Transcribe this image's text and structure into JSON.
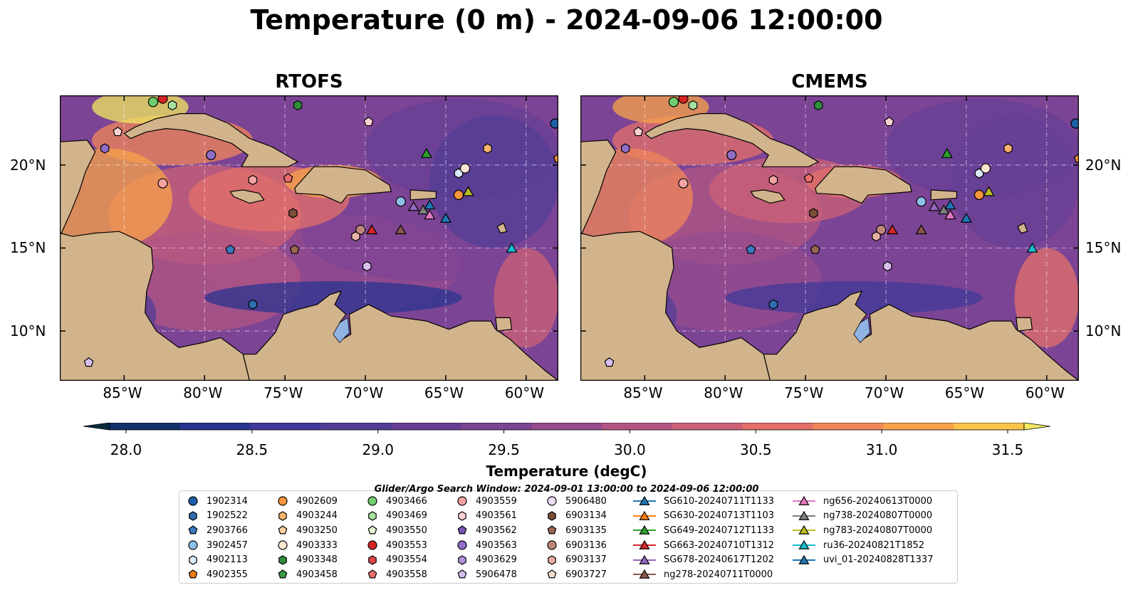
{
  "title": "Temperature (0 m) - 2024-09-06 12:00:00",
  "panels": [
    {
      "id": "left",
      "title": "RTOFS"
    },
    {
      "id": "right",
      "title": "CMEMS"
    }
  ],
  "map_extent": {
    "lon_min": -89,
    "lon_max": -58,
    "lat_min": 7,
    "lat_max": 24.2
  },
  "lon_ticks": [
    {
      "lon": -85,
      "label": "85°W"
    },
    {
      "lon": -80,
      "label": "80°W"
    },
    {
      "lon": -75,
      "label": "75°W"
    },
    {
      "lon": -70,
      "label": "70°W"
    },
    {
      "lon": -65,
      "label": "65°W"
    },
    {
      "lon": -60,
      "label": "60°W"
    }
  ],
  "lat_ticks": [
    {
      "lat": 20,
      "label": "20°N"
    },
    {
      "lat": 15,
      "label": "15°N"
    },
    {
      "lat": 10,
      "label": "10°N"
    }
  ],
  "colorbar": {
    "label": "Temperature (degC)",
    "min": 28.0,
    "max": 31.5,
    "extend": "both",
    "tick_labels": [
      "28.0",
      "28.5",
      "29.0",
      "29.5",
      "30.0",
      "30.5",
      "31.0",
      "31.5"
    ],
    "colors": [
      "#0b2a3f",
      "#14306b",
      "#2a3490",
      "#403a98",
      "#533d97",
      "#663f95",
      "#7c4494",
      "#964c8d",
      "#b25584",
      "#cc6176",
      "#e4706a",
      "#f08758",
      "#f8a34a",
      "#f9c44a",
      "#f2e860"
    ]
  },
  "legend": {
    "title": "Glider/Argo Search Window: 2024-09-01 13:00:00 to 2024-09-06 12:00:00",
    "columns": [
      [
        {
          "label": "1902314",
          "shape": "circle",
          "color": "#1f5fa5"
        },
        {
          "label": "1902522",
          "shape": "hexagon",
          "color": "#2e6db0"
        },
        {
          "label": "2903766",
          "shape": "pentagon",
          "color": "#3a7ac0"
        },
        {
          "label": "3902457",
          "shape": "circle",
          "color": "#8fc0e8"
        },
        {
          "label": "4902113",
          "shape": "hexagon",
          "color": "#dbeaf8"
        },
        {
          "label": "4902355",
          "shape": "pentagon",
          "color": "#ef7a12"
        }
      ],
      [
        {
          "label": "4902609",
          "shape": "circle",
          "color": "#f7963a"
        },
        {
          "label": "4903244",
          "shape": "hexagon",
          "color": "#f9b26e"
        },
        {
          "label": "4903250",
          "shape": "pentagon",
          "color": "#fbcf9e"
        },
        {
          "label": "4903333",
          "shape": "circle",
          "color": "#fde7d2"
        },
        {
          "label": "4903348",
          "shape": "hexagon",
          "color": "#2f8f3a"
        },
        {
          "label": "4903458",
          "shape": "pentagon",
          "color": "#3a9c45"
        }
      ],
      [
        {
          "label": "4903466",
          "shape": "circle",
          "color": "#6fcf6f"
        },
        {
          "label": "4903469",
          "shape": "hexagon",
          "color": "#a7e3a0"
        },
        {
          "label": "4903550",
          "shape": "pentagon",
          "color": "#e6f7d8"
        },
        {
          "label": "4903553",
          "shape": "circle",
          "color": "#d42424"
        },
        {
          "label": "4903554",
          "shape": "hexagon",
          "color": "#e14848"
        },
        {
          "label": "4903558",
          "shape": "pentagon",
          "color": "#ec6e6e"
        }
      ],
      [
        {
          "label": "4903559",
          "shape": "circle",
          "color": "#f4a3a3"
        },
        {
          "label": "4903561",
          "shape": "hexagon",
          "color": "#fbd2d2"
        },
        {
          "label": "4903562",
          "shape": "pentagon",
          "color": "#7a54b4"
        },
        {
          "label": "4903563",
          "shape": "circle",
          "color": "#8f6cc6"
        },
        {
          "label": "4903629",
          "shape": "hexagon",
          "color": "#b294dc"
        },
        {
          "label": "5906478",
          "shape": "pentagon",
          "color": "#d7bfee"
        }
      ],
      [
        {
          "label": "5906480",
          "shape": "circle",
          "color": "#eedcf8"
        },
        {
          "label": "6903134",
          "shape": "hexagon",
          "color": "#7d4e37"
        },
        {
          "label": "6903135",
          "shape": "pentagon",
          "color": "#9a6850"
        },
        {
          "label": "6903136",
          "shape": "circle",
          "color": "#c1867a"
        },
        {
          "label": "6903137",
          "shape": "hexagon",
          "color": "#e4b1a3"
        },
        {
          "label": "6903727",
          "shape": "pentagon",
          "color": "#f8dcd3"
        }
      ],
      [
        {
          "label": "SG610-20240711T1133",
          "shape": "triangle",
          "color": "#1f77b4"
        },
        {
          "label": "SG630-20240713T1103",
          "shape": "triangle",
          "color": "#ff7f0e"
        },
        {
          "label": "SG649-20240712T1133",
          "shape": "triangle",
          "color": "#2ca02c"
        },
        {
          "label": "SG663-20240710T1312",
          "shape": "triangle",
          "color": "#d62728"
        },
        {
          "label": "SG678-20240617T1202",
          "shape": "triangle",
          "color": "#9467bd"
        },
        {
          "label": "ng278-20240711T0000",
          "shape": "triangle",
          "color": "#8c564b"
        }
      ],
      [
        {
          "label": "ng656-20240613T0000",
          "shape": "triangle",
          "color": "#e377c2"
        },
        {
          "label": "ng738-20240807T0000",
          "shape": "triangle",
          "color": "#7f7f7f"
        },
        {
          "label": "ng783-20240807T0000",
          "shape": "triangle",
          "color": "#bcbd22"
        },
        {
          "label": "ru36-20240821T1852",
          "shape": "triangle",
          "color": "#17becf"
        },
        {
          "label": "uvi_01-20240828T1337",
          "shape": "triangle",
          "color": "#1f77b4"
        }
      ]
    ]
  },
  "markers": [
    {
      "lon": -83.2,
      "lat": 23.8,
      "shape": "circle",
      "color": "#6fcf6f"
    },
    {
      "lon": -82.6,
      "lat": 24.0,
      "shape": "circle",
      "color": "#d42424"
    },
    {
      "lon": -82.0,
      "lat": 23.6,
      "shape": "hexagon",
      "color": "#a7e3a0"
    },
    {
      "lon": -74.2,
      "lat": 23.6,
      "shape": "hexagon",
      "color": "#2f8f3a"
    },
    {
      "lon": -69.8,
      "lat": 22.6,
      "shape": "pentagon",
      "color": "#fbd2d2"
    },
    {
      "lon": -85.4,
      "lat": 22.0,
      "shape": "pentagon",
      "color": "#fbd2d2"
    },
    {
      "lon": -86.2,
      "lat": 21.0,
      "shape": "hexagon",
      "color": "#8f6cc6"
    },
    {
      "lon": -79.6,
      "lat": 20.6,
      "shape": "circle",
      "color": "#8f6cc6"
    },
    {
      "lon": -82.6,
      "lat": 18.9,
      "shape": "circle",
      "color": "#f4a3a3"
    },
    {
      "lon": -77.0,
      "lat": 19.1,
      "shape": "hexagon",
      "color": "#f4a3a3"
    },
    {
      "lon": -74.8,
      "lat": 19.2,
      "shape": "pentagon",
      "color": "#ec6e6e"
    },
    {
      "lon": -74.5,
      "lat": 17.1,
      "shape": "hexagon",
      "color": "#7d4e37"
    },
    {
      "lon": -66.2,
      "lat": 20.7,
      "shape": "triangle",
      "color": "#2ca02c"
    },
    {
      "lon": -62.4,
      "lat": 21.0,
      "shape": "hexagon",
      "color": "#f9b26e"
    },
    {
      "lon": -58.2,
      "lat": 22.5,
      "shape": "circle",
      "color": "#1f5fa5"
    },
    {
      "lon": -64.2,
      "lat": 19.5,
      "shape": "hexagon",
      "color": "#dbeaf8"
    },
    {
      "lon": -63.8,
      "lat": 19.8,
      "shape": "circle",
      "color": "#fde7d2"
    },
    {
      "lon": -64.2,
      "lat": 18.2,
      "shape": "circle",
      "color": "#f7963a"
    },
    {
      "lon": -63.6,
      "lat": 18.4,
      "shape": "triangle",
      "color": "#bcbd22"
    },
    {
      "lon": -67.8,
      "lat": 17.8,
      "shape": "circle",
      "color": "#8fc0e8"
    },
    {
      "lon": -67.0,
      "lat": 17.5,
      "shape": "triangle",
      "color": "#9467bd"
    },
    {
      "lon": -66.4,
      "lat": 17.3,
      "shape": "triangle",
      "color": "#7f7f7f"
    },
    {
      "lon": -66.0,
      "lat": 17.6,
      "shape": "triangle",
      "color": "#1f77b4"
    },
    {
      "lon": -66.0,
      "lat": 17.0,
      "shape": "triangle",
      "color": "#e377c2"
    },
    {
      "lon": -65.0,
      "lat": 16.8,
      "shape": "triangle",
      "color": "#1f77b4"
    },
    {
      "lon": -70.3,
      "lat": 16.1,
      "shape": "circle",
      "color": "#c1867a"
    },
    {
      "lon": -70.6,
      "lat": 15.7,
      "shape": "hexagon",
      "color": "#e4b1a3"
    },
    {
      "lon": -69.6,
      "lat": 16.1,
      "shape": "triangle",
      "color": "#d62728"
    },
    {
      "lon": -67.8,
      "lat": 16.1,
      "shape": "triangle",
      "color": "#8c564b"
    },
    {
      "lon": -78.4,
      "lat": 14.9,
      "shape": "pentagon",
      "color": "#3a7ac0"
    },
    {
      "lon": -74.4,
      "lat": 14.9,
      "shape": "pentagon",
      "color": "#9a6850"
    },
    {
      "lon": -69.9,
      "lat": 13.9,
      "shape": "hexagon",
      "color": "#d7bfee"
    },
    {
      "lon": -77.0,
      "lat": 11.6,
      "shape": "hexagon",
      "color": "#2e6db0"
    },
    {
      "lon": -60.9,
      "lat": 15.0,
      "shape": "triangle",
      "color": "#17becf"
    },
    {
      "lon": -87.2,
      "lat": 8.1,
      "shape": "pentagon",
      "color": "#d7bfee"
    },
    {
      "lon": -58.0,
      "lat": 20.4,
      "shape": "pentagon",
      "color": "#f7963a"
    }
  ]
}
